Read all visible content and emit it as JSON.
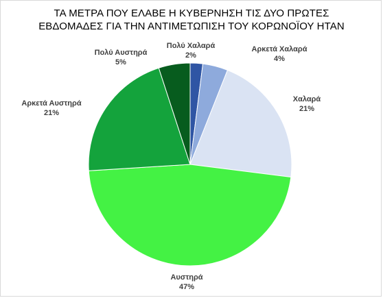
{
  "chart_data": {
    "type": "pie",
    "title_line1": "ΤΑ ΜΕΤΡΑ ΠΟΥ ΕΛΑΒΕ Η ΚΥΒΕΡΝΗΣΗ ΤΙΣ ΔΥΟ ΠΡΩΤΕΣ",
    "title_line2": "ΕΒΔΟΜΑΔΕΣ ΓΙΑ ΤΗΝ ΑΝΤΙΜΕΤΩΠΙΣΗ ΤΟΥ ΚΟΡΩΝΟΪΟΥ ΗΤΑΝ",
    "slices": [
      {
        "label": "Πολύ Χαλαρά",
        "value": 2,
        "pct": "2%",
        "color": "#2f55a4"
      },
      {
        "label": "Αρκετά Χαλαρά",
        "value": 4,
        "pct": "4%",
        "color": "#8eaadc"
      },
      {
        "label": "Χαλαρά",
        "value": 21,
        "pct": "21%",
        "color": "#dae3f3"
      },
      {
        "label": "Αυστηρά",
        "value": 47,
        "pct": "47%",
        "color": "#44f244"
      },
      {
        "label": "Αρκετά Αυστηρά",
        "value": 21,
        "pct": "21%",
        "color": "#14a33c"
      },
      {
        "label": "Πολύ Αυστηρά",
        "value": 5,
        "pct": "5%",
        "color": "#075c1e"
      }
    ]
  }
}
